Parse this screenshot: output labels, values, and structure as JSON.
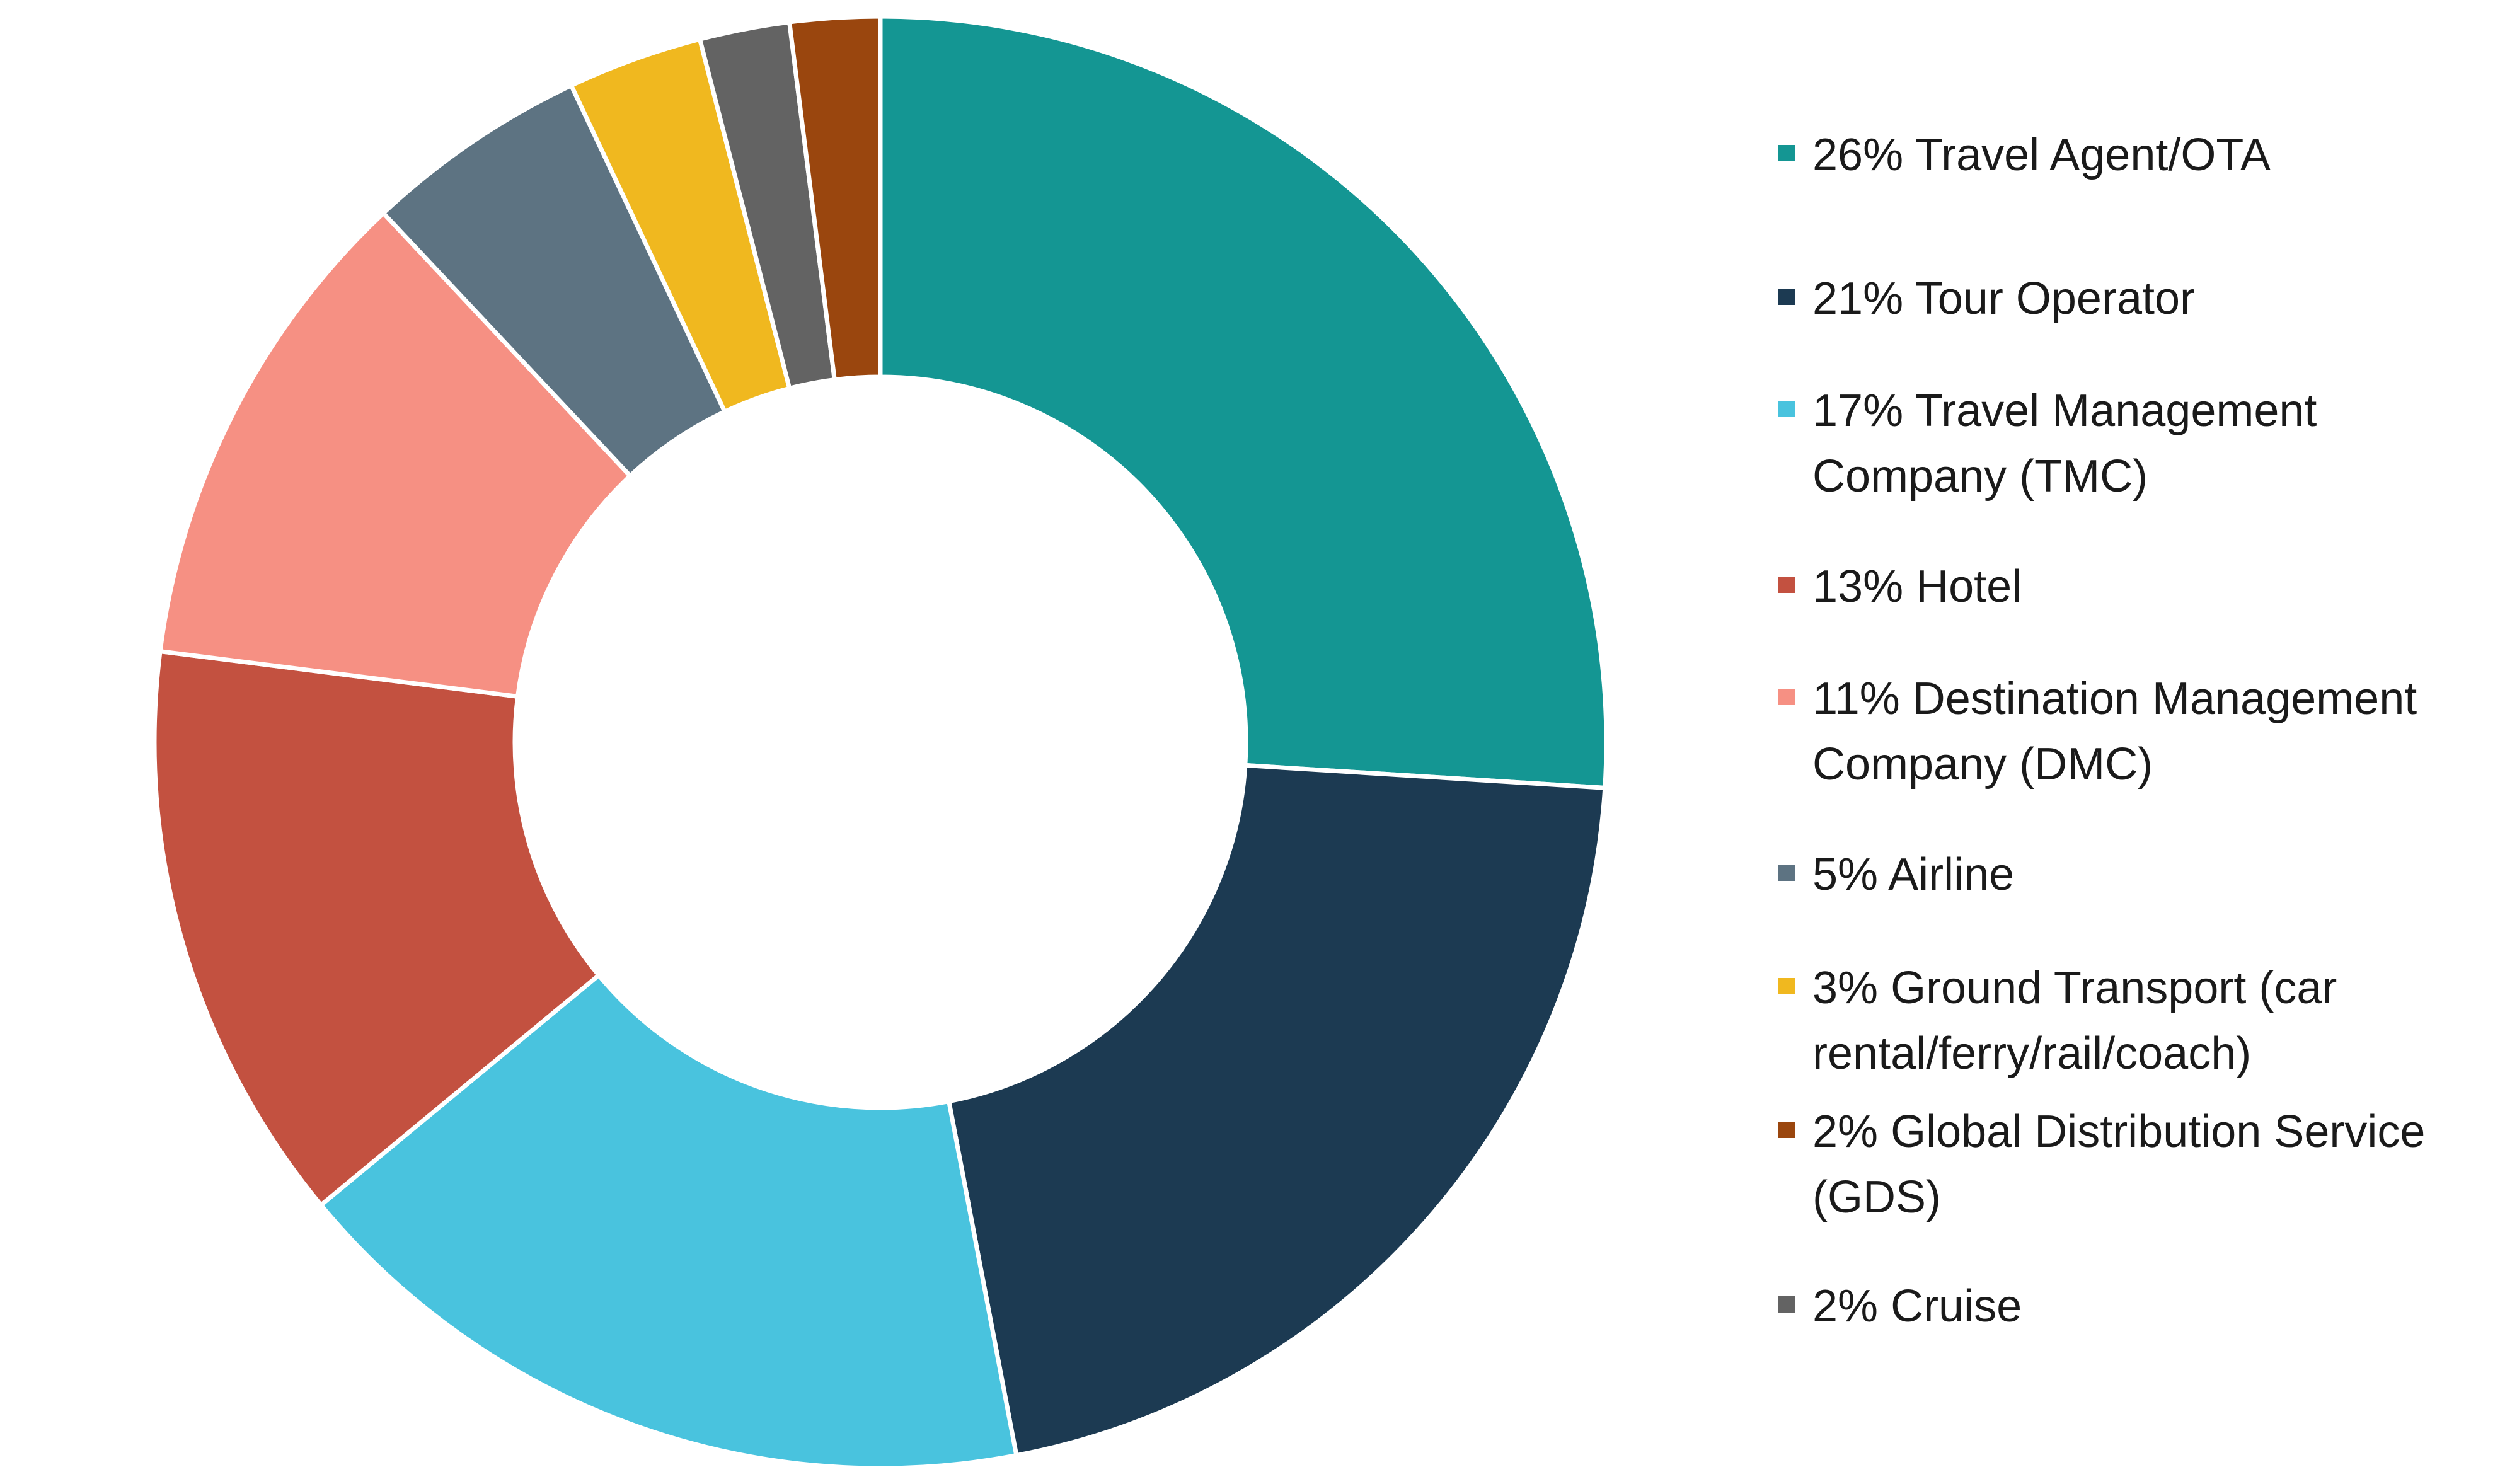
{
  "chart_data": {
    "type": "pie",
    "variant": "donut",
    "title": "",
    "legend_position": "right",
    "slices": [
      {
        "label_lines": [
          "26% Travel Agent/OTA"
        ],
        "value": 26,
        "color": "#149693"
      },
      {
        "label_lines": [
          "21% Tour Operator"
        ],
        "value": 21,
        "color": "#1c3a52"
      },
      {
        "label_lines": [
          "17% Travel Management",
          "Company (TMC)"
        ],
        "value": 17,
        "color": "#49c3de"
      },
      {
        "label_lines": [
          "13% Hotel"
        ],
        "value": 13,
        "color": "#c35140"
      },
      {
        "label_lines": [
          "11% Destination Management",
          "Company (DMC)"
        ],
        "value": 11,
        "color": "#f69083"
      },
      {
        "label_lines": [
          "5% Airline"
        ],
        "value": 5,
        "color": "#5d7382"
      },
      {
        "label_lines": [
          "3% Ground Transport (car",
          "rental/ferry/rail/coach)"
        ],
        "value": 3,
        "color": "#f0b81f"
      },
      {
        "label_lines": [
          "2% Cruise"
        ],
        "value": 2,
        "color": "#636363"
      },
      {
        "label_lines": [
          "2% Global Distribution Service",
          "(GDS)"
        ],
        "value": 2,
        "color": "#9a460e"
      }
    ],
    "legend_order": [
      0,
      1,
      2,
      3,
      4,
      5,
      6,
      8,
      7
    ]
  }
}
